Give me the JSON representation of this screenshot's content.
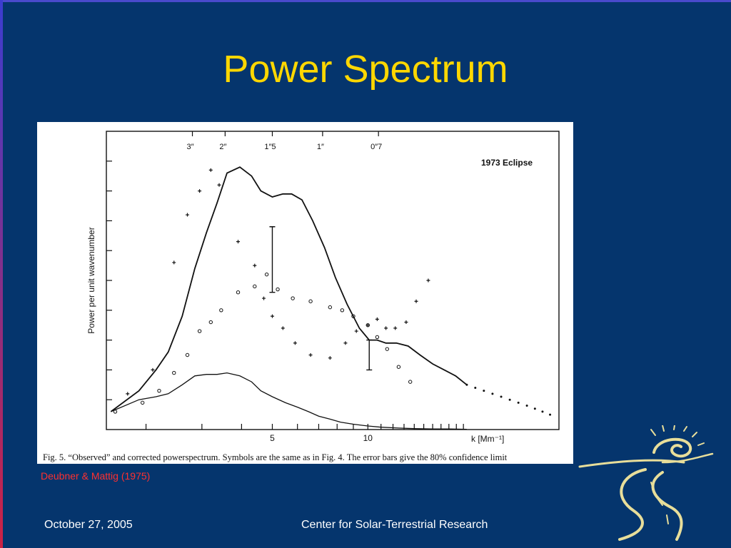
{
  "slide": {
    "title": "Power Spectrum",
    "citation": "Deubner & Mattig (1975)",
    "footer_date": "October 27, 2005",
    "footer_org": "Center for Solar-Terrestrial Research",
    "logo_icon": "sun-road-logo-icon"
  },
  "colors": {
    "background": "#05356d",
    "title": "#ffd700",
    "citation": "#ff3030",
    "footer": "#ffffff"
  },
  "chart_data": {
    "type": "line",
    "annotation": "1973 Eclipse",
    "caption": "Fig. 5. “Observed” and corrected powerspectrum. Symbols are the same as in Fig. 4. The error bars give the 80% confidence limit",
    "xlabel": "k [Mm⁻¹]",
    "ylabel": "Power per unit wavenumber",
    "x_scale": "log",
    "xlim": [
      1.5,
      40
    ],
    "ylim": [
      0,
      10
    ],
    "x_tick_labels": [
      {
        "value": 5,
        "label": "5"
      },
      {
        "value": 10,
        "label": "10"
      }
    ],
    "top_axis_labels": [
      {
        "k": 2.8,
        "label": "3″"
      },
      {
        "k": 3.55,
        "label": "2″"
      },
      {
        "k": 5.0,
        "label": "1″5"
      },
      {
        "k": 7.2,
        "label": "1″"
      },
      {
        "k": 10.8,
        "label": "0″7"
      }
    ],
    "series": [
      {
        "style": "line",
        "x": [
          1.55,
          1.9,
          2.15,
          2.35,
          2.6,
          2.85,
          3.1,
          3.35,
          3.6,
          3.95,
          4.3,
          4.6,
          5.0,
          5.4,
          5.75,
          6.2,
          6.7,
          7.3,
          7.9,
          8.6,
          9.4,
          10.1,
          10.7,
          11.4,
          12.3,
          13.4,
          14.6,
          16.0,
          17.4,
          18.9,
          20.5
        ],
        "y": [
          0.6,
          1.3,
          2.0,
          2.6,
          3.8,
          5.4,
          6.6,
          7.6,
          8.6,
          8.8,
          8.5,
          8.0,
          7.8,
          7.9,
          7.9,
          7.7,
          7.0,
          6.1,
          5.1,
          4.2,
          3.4,
          3.0,
          3.0,
          2.9,
          2.9,
          2.8,
          2.5,
          2.2,
          2.0,
          1.8,
          1.5
        ]
      },
      {
        "style": "line",
        "x": [
          1.55,
          1.9,
          2.15,
          2.35,
          2.6,
          2.85,
          3.1,
          3.35,
          3.6,
          3.95,
          4.3,
          4.6,
          5.0,
          5.5,
          6.0,
          6.5,
          7.0,
          7.6,
          8.2,
          9.0,
          10.0,
          11.0,
          12.5,
          14.0,
          16.0,
          18.0,
          20.5
        ],
        "y": [
          0.6,
          1.0,
          1.1,
          1.2,
          1.5,
          1.8,
          1.85,
          1.85,
          1.9,
          1.8,
          1.6,
          1.3,
          1.1,
          0.9,
          0.75,
          0.6,
          0.45,
          0.35,
          0.25,
          0.18,
          0.12,
          0.08,
          0.05,
          0.03,
          0.02,
          0.02,
          0.01
        ]
      },
      {
        "style": "plus",
        "x": [
          1.75,
          2.1,
          2.45,
          2.7,
          2.95,
          3.2,
          3.4,
          3.9,
          4.4,
          4.7,
          5.0,
          5.4,
          5.9,
          6.6,
          7.6,
          8.5,
          9.2,
          10.0,
          10.7,
          11.4,
          12.2,
          13.2,
          14.2,
          15.5
        ],
        "y": [
          1.2,
          2.0,
          5.6,
          7.2,
          8.0,
          8.7,
          8.2,
          6.3,
          5.5,
          4.4,
          3.8,
          3.4,
          2.9,
          2.5,
          2.4,
          2.9,
          3.3,
          3.5,
          3.7,
          3.4,
          3.4,
          3.6,
          4.3,
          5.0
        ]
      },
      {
        "style": "circle",
        "x": [
          1.6,
          1.95,
          2.2,
          2.45,
          2.7,
          2.95,
          3.2,
          3.45,
          3.9,
          4.4,
          4.8,
          5.2,
          5.8,
          6.6,
          7.6,
          8.3,
          9.0,
          10.0,
          10.7,
          11.5,
          12.5,
          13.6
        ],
        "y": [
          0.6,
          0.9,
          1.3,
          1.9,
          2.5,
          3.3,
          3.6,
          4.0,
          4.6,
          4.8,
          5.2,
          4.7,
          4.4,
          4.3,
          4.1,
          4.0,
          3.8,
          3.5,
          3.1,
          2.7,
          2.1,
          1.6
        ]
      },
      {
        "style": "dot",
        "x": [
          20.5,
          21.8,
          23.2,
          24.7,
          26.3,
          28.0,
          29.8,
          31.7,
          33.6,
          35.5,
          37.5
        ],
        "y": [
          1.5,
          1.4,
          1.3,
          1.2,
          1.1,
          1.0,
          0.9,
          0.8,
          0.7,
          0.6,
          0.5
        ]
      }
    ],
    "error_bars": [
      {
        "x": 5.0,
        "y_low": 4.6,
        "y_high": 6.8
      },
      {
        "x": 10.1,
        "y_low": 2.0,
        "y_high": 3.0
      }
    ],
    "grid": false,
    "legend": "none"
  }
}
